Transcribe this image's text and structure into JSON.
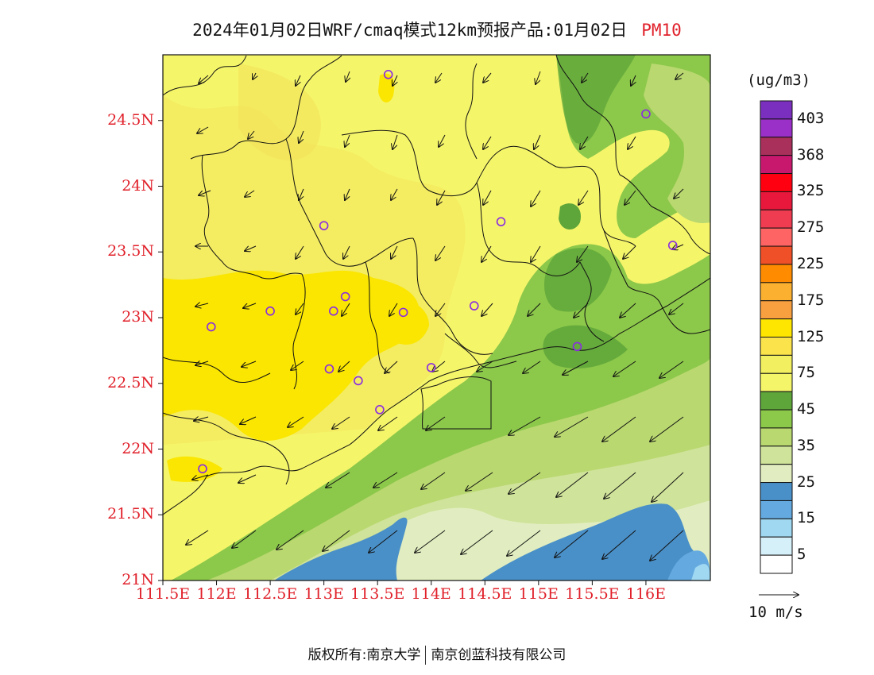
{
  "title": {
    "main": "2024年01月02日WRF/cmaq模式12km预报产品:01月02日",
    "pollutant": "PM10"
  },
  "axes": {
    "lat_labels": [
      "24.5N",
      "24N",
      "23.5N",
      "23N",
      "22.5N",
      "22N",
      "21.5N",
      "21N"
    ],
    "lat_values": [
      24.5,
      24.0,
      23.5,
      23.0,
      22.5,
      22.0,
      21.5,
      21.0
    ],
    "lon_labels": [
      "111.5E",
      "112E",
      "112.5E",
      "113E",
      "113.5E",
      "114E",
      "114.5E",
      "115E",
      "115.5E",
      "116E"
    ],
    "lon_values": [
      111.5,
      112.0,
      112.5,
      113.0,
      113.5,
      114.0,
      114.5,
      115.0,
      115.5,
      116.0
    ],
    "lon_range": [
      111.5,
      116.6
    ],
    "lat_range": [
      21.0,
      25.0
    ]
  },
  "legend": {
    "unit": "(ug/m3)",
    "labels": [
      "403",
      "368",
      "325",
      "275",
      "225",
      "175",
      "125",
      "75",
      "45",
      "35",
      "25",
      "15",
      "5"
    ],
    "colors": [
      "#7b2fbe",
      "#9b30c8",
      "#a8305a",
      "#c8186e",
      "#ff0010",
      "#e8183c",
      "#f03c50",
      "#ff6464",
      "#f05028",
      "#ff8c00",
      "#fbb030",
      "#f8a040",
      "#ffe600",
      "#fbe34c",
      "#f2f060",
      "#f5f56a",
      "#5ea63a",
      "#8cc84a",
      "#b9d870",
      "#cfe39a",
      "#e1edc0",
      "#4a90c8",
      "#64aae0",
      "#a0d8f2",
      "#d6f0fa",
      "#ffffff"
    ]
  },
  "wind_reference": {
    "label": "10 m/s"
  },
  "stations": [
    {
      "lon": 113.6,
      "lat": 24.85
    },
    {
      "lon": 116.0,
      "lat": 24.55
    },
    {
      "lon": 113.0,
      "lat": 23.7
    },
    {
      "lon": 114.65,
      "lat": 23.73
    },
    {
      "lon": 116.25,
      "lat": 23.55
    },
    {
      "lon": 112.5,
      "lat": 23.05
    },
    {
      "lon": 113.09,
      "lat": 23.05
    },
    {
      "lon": 113.2,
      "lat": 23.16
    },
    {
      "lon": 113.74,
      "lat": 23.04
    },
    {
      "lon": 114.4,
      "lat": 23.09
    },
    {
      "lon": 111.95,
      "lat": 22.93
    },
    {
      "lon": 115.36,
      "lat": 22.78
    },
    {
      "lon": 113.05,
      "lat": 22.61
    },
    {
      "lon": 114.0,
      "lat": 22.62
    },
    {
      "lon": 113.32,
      "lat": 22.52
    },
    {
      "lon": 113.52,
      "lat": 22.3
    },
    {
      "lon": 111.87,
      "lat": 21.85
    }
  ],
  "footer": {
    "copyright": "版权所有:南京大学",
    "company": "南京创蓝科技有限公司"
  }
}
